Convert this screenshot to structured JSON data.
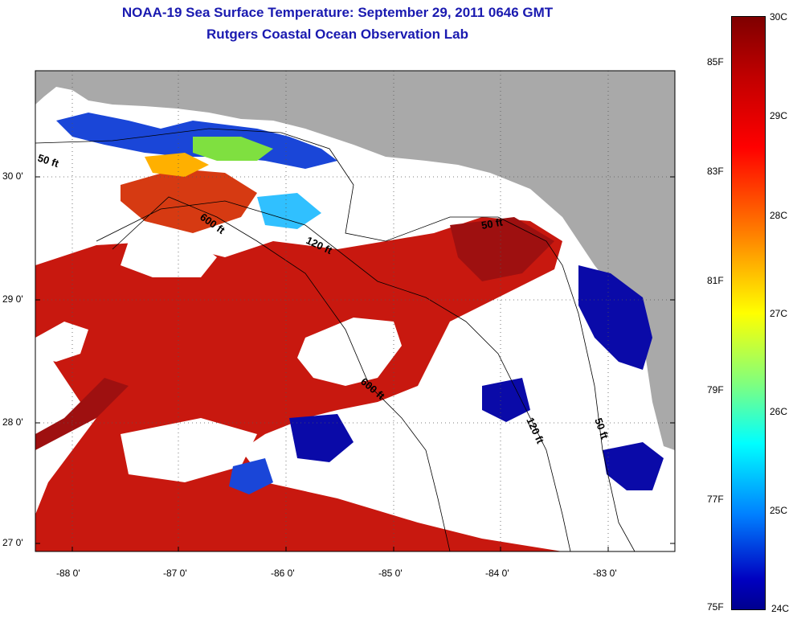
{
  "title": {
    "line1": "NOAA-19 Sea Surface Temperature:  September 29, 2011 0646 GMT",
    "line2": "Rutgers Coastal Ocean Observation Lab"
  },
  "map": {
    "lat_labels": [
      "30 0'",
      "29 0'",
      "28 0'",
      "27 0'"
    ],
    "lon_labels": [
      "-88 0'",
      "-87 0'",
      "-86 0'",
      "-85 0'",
      "-84 0'",
      "-83 0'"
    ],
    "contour_labels": [
      "50 ft",
      "600 ft",
      "120 ft",
      "50 ft",
      "600 ft",
      "120 ft",
      "50 ft"
    ],
    "colors": {
      "land": "#a9a9a9",
      "cloud": "#ffffff",
      "warm": "#c0150f",
      "hot": "#9e1010",
      "cool": "#0a0aa8"
    }
  },
  "colorbar": {
    "celsius": [
      "30C",
      "29C",
      "28C",
      "27C",
      "26C",
      "25C",
      "24C"
    ],
    "fahrenheit": [
      "85F",
      "83F",
      "81F",
      "79F",
      "77F",
      "75F"
    ]
  }
}
